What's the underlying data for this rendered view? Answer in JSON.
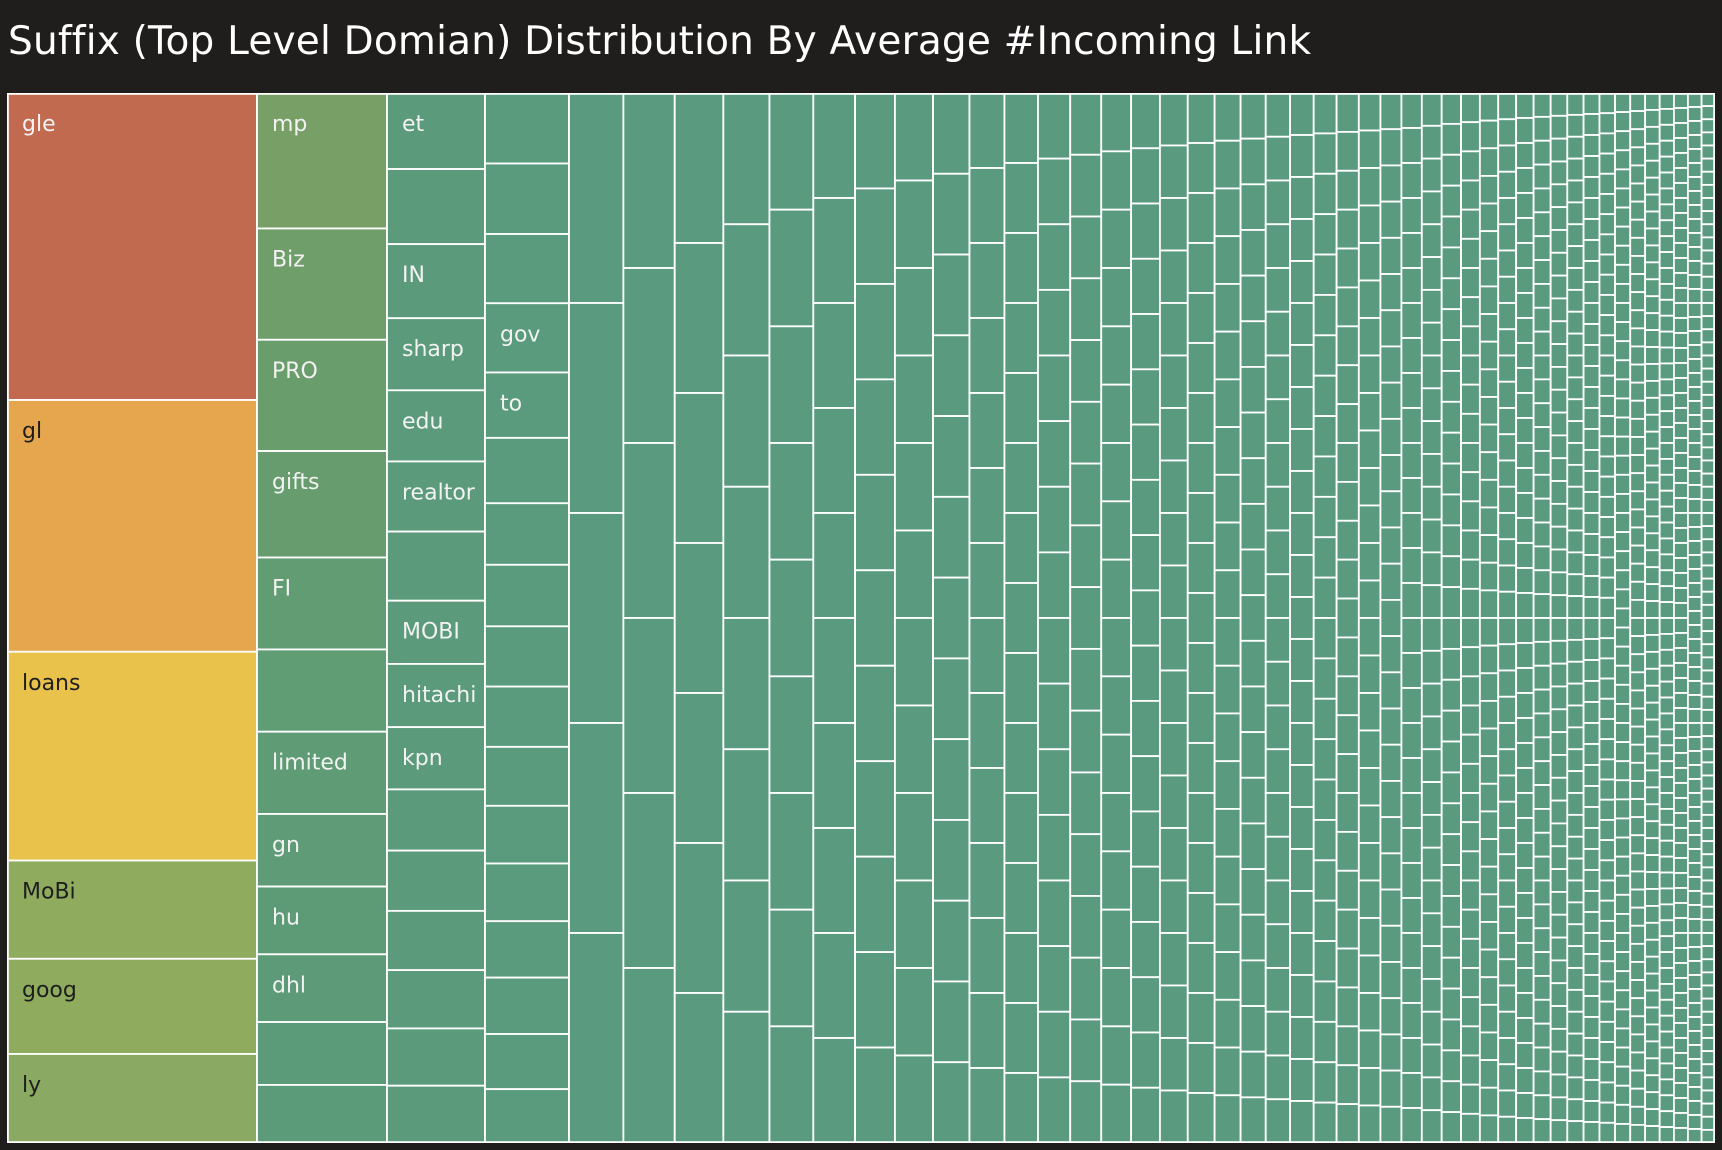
{
  "page": {
    "title": "Suffix (Top Level Domian) Distribution By Average #Incoming Link",
    "background_color": "#201e1c"
  },
  "chart_data": {
    "type": "treemap",
    "title": "Suffix (Top Level Domian) Distribution By Average #Incoming Link",
    "measure": "Average #Incoming Link",
    "color_scale": {
      "high": "#c26a50",
      "mid_high": "#e6a64e",
      "mid": "#e8c24a",
      "mid_low": "#8fab5e",
      "low": "#5a9b80"
    },
    "label_colors": {
      "dark_text": "#1e1e1e",
      "light_text": "#f2f2f2",
      "border": "#ffffff"
    },
    "columns": [
      {
        "tiles": [
          {
            "label": "gle",
            "value": 100,
            "color": "#c26a50"
          },
          {
            "label": "gl",
            "value": 82,
            "color": "#e6a64e"
          },
          {
            "label": "loans",
            "value": 68,
            "color": "#e8c24a"
          },
          {
            "label": "MoBi",
            "value": 32,
            "color": "#8fab5e"
          },
          {
            "label": "goog",
            "value": 31,
            "color": "#8fab5e"
          },
          {
            "label": "ly",
            "value": 29,
            "color": "#8aa963"
          }
        ]
      },
      {
        "tiles": [
          {
            "label": "mp",
            "value": 28,
            "color": "#779f66"
          },
          {
            "label": "Biz",
            "value": 23,
            "color": "#6f9e6a"
          },
          {
            "label": "PRO",
            "value": 23,
            "color": "#6a9d6c"
          },
          {
            "label": "gifts",
            "value": 22,
            "color": "#669c6e"
          },
          {
            "label": "FI",
            "value": 19,
            "color": "#629c72"
          },
          {
            "label": "",
            "value": 17,
            "color": "#609c74"
          },
          {
            "label": "limited",
            "value": 17,
            "color": "#5f9b75"
          },
          {
            "label": "gn",
            "value": 15,
            "color": "#5e9b76"
          },
          {
            "label": "hu",
            "value": 14,
            "color": "#5d9b77"
          },
          {
            "label": "dhl",
            "value": 14,
            "color": "#5d9b78"
          },
          {
            "label": "",
            "value": 13,
            "color": "#5c9b79"
          },
          {
            "label": "",
            "value": 12,
            "color": "#5c9b7a"
          }
        ]
      },
      {
        "tiles": [
          {
            "label": "et",
            "value": 7.7,
            "color": "#5b9b7c"
          },
          {
            "label": "",
            "value": 7.6,
            "color": "#5b9b7c"
          },
          {
            "label": "IN",
            "value": 7.5,
            "color": "#5b9b7c"
          },
          {
            "label": "sharp",
            "value": 7.3,
            "color": "#5b9b7c"
          },
          {
            "label": "edu",
            "value": 7.2,
            "color": "#5b9b7c"
          },
          {
            "label": "realtor",
            "value": 7.1,
            "color": "#5b9b7c"
          },
          {
            "label": "",
            "value": 7.0,
            "color": "#5b9b7c"
          },
          {
            "label": "MOBI",
            "value": 6.4,
            "color": "#5b9b7c"
          },
          {
            "label": "hitachi",
            "value": 6.4,
            "color": "#5b9b7c"
          },
          {
            "label": "kpn",
            "value": 6.3,
            "color": "#5b9b7c"
          },
          {
            "label": "",
            "value": 6.2,
            "color": "#5b9b7c"
          },
          {
            "label": "",
            "value": 6.1,
            "color": "#5b9b7c"
          },
          {
            "label": "",
            "value": 6.0,
            "color": "#5b9b7c"
          },
          {
            "label": "",
            "value": 5.9,
            "color": "#5b9b7c"
          },
          {
            "label": "",
            "value": 5.8,
            "color": "#5b9b7c"
          },
          {
            "label": "",
            "value": 5.8,
            "color": "#5b9b7c"
          }
        ]
      },
      {
        "tiles": [
          {
            "label": "",
            "value": 5.5,
            "color": "#5a9b7d"
          },
          {
            "label": "",
            "value": 5.5,
            "color": "#5a9b7d"
          },
          {
            "label": "",
            "value": 5.4,
            "color": "#5a9b7d"
          },
          {
            "label": "gov",
            "value": 5.4,
            "color": "#5a9b7d"
          },
          {
            "label": "to",
            "value": 5.1,
            "color": "#5a9b7d"
          },
          {
            "label": "",
            "value": 5.1,
            "color": "#5a9b7d"
          },
          {
            "label": "",
            "value": 4.8,
            "color": "#5a9b7d"
          },
          {
            "label": "",
            "value": 4.8,
            "color": "#5a9b7d"
          },
          {
            "label": "",
            "value": 4.7,
            "color": "#5a9b7d"
          },
          {
            "label": "",
            "value": 4.7,
            "color": "#5a9b7d"
          },
          {
            "label": "",
            "value": 4.6,
            "color": "#5a9b7d"
          },
          {
            "label": "",
            "value": 4.5,
            "color": "#5a9b7d"
          },
          {
            "label": "",
            "value": 4.5,
            "color": "#5a9b7d"
          },
          {
            "label": "",
            "value": 4.4,
            "color": "#5a9b7d"
          },
          {
            "label": "",
            "value": 4.4,
            "color": "#5a9b7d"
          },
          {
            "label": "",
            "value": 4.3,
            "color": "#5a9b7d"
          },
          {
            "label": "",
            "value": 4.2,
            "color": "#5a9b7d"
          }
        ]
      }
    ],
    "remainder_columns": [
      5,
      6,
      7,
      8,
      9,
      10,
      11,
      12,
      13,
      14,
      15,
      16,
      17,
      18,
      19,
      20,
      21,
      22,
      23,
      24,
      25,
      26,
      27,
      28,
      29,
      30,
      32,
      34,
      36,
      38,
      40,
      42,
      44,
      46,
      48,
      50,
      52,
      55,
      58,
      62,
      66,
      70,
      75,
      80
    ],
    "remainder_color": "#5a9b7f"
  }
}
